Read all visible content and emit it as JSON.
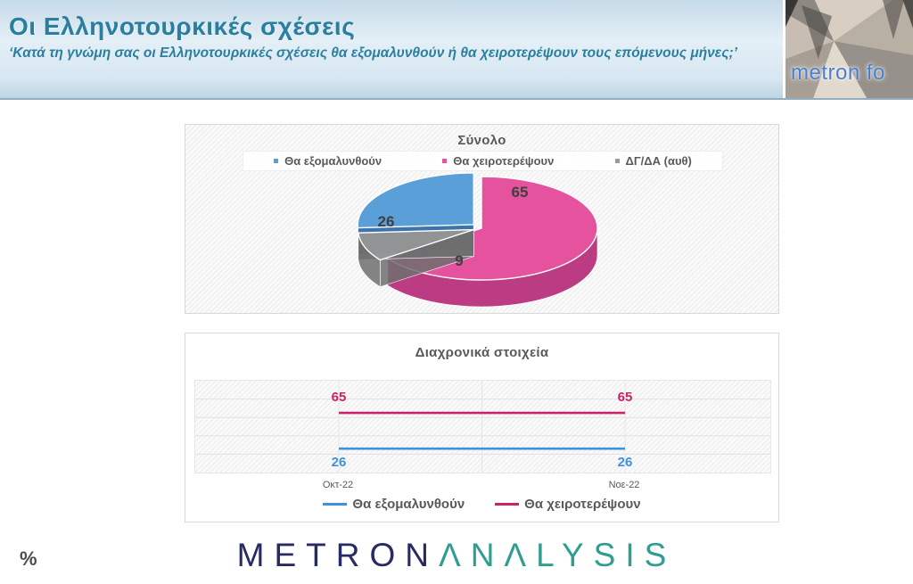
{
  "header": {
    "title": "Οι Ελληνοτουρκικές σχέσεις",
    "subtitle": "‘Κατά τη γνώμη σας οι Ελληνοτουρκικές σχέσεις θα εξομαλυνθούν ή θα χειροτερέψουν τους επόμενους μήνες;’",
    "logo_text": "metron fo"
  },
  "footer": {
    "brand_part1": "METRON",
    "brand_part2": "ΛΝΛLYSIS",
    "percent_symbol": "%"
  },
  "colors": {
    "title_teal": "#2b7e9e",
    "blue": "#4f9ad8",
    "pink": "#e5539f",
    "gray": "#9a9a9a",
    "line_blue": "#3e92d9",
    "line_pink": "#cb2268",
    "label_gray": "#3f3f3f"
  },
  "chart_data": [
    {
      "type": "pie",
      "title": "Σύνολο",
      "labels": [
        "Θα εξομαλυνθούν",
        "Θα χειροτερέψουν",
        "ΔΓ/ΔΑ (αυθ)"
      ],
      "values": [
        26,
        65,
        9
      ],
      "colors": [
        "#5b9fd9",
        "#e5539f",
        "#9a9a9a"
      ],
      "side_colors": [
        "#3e74ad",
        "#bb3c82",
        "#6f6f6f"
      ],
      "legend_position": "top",
      "style": "3d-exploded",
      "data_labels": [
        26,
        65,
        9
      ]
    },
    {
      "type": "line",
      "title": "Διαχρονικά στοιχεία",
      "categories": [
        "Οκτ-22",
        "Νοε-22"
      ],
      "series": [
        {
          "name": "Θα εξομαλυνθούν",
          "color": "#3e92d9",
          "values": [
            26,
            26
          ]
        },
        {
          "name": "Θα χειροτερέψουν",
          "color": "#cb2268",
          "values": [
            65,
            65
          ]
        }
      ],
      "ylim": [
        0,
        100
      ],
      "grid": true,
      "legend_position": "bottom",
      "data_labels": true
    }
  ]
}
